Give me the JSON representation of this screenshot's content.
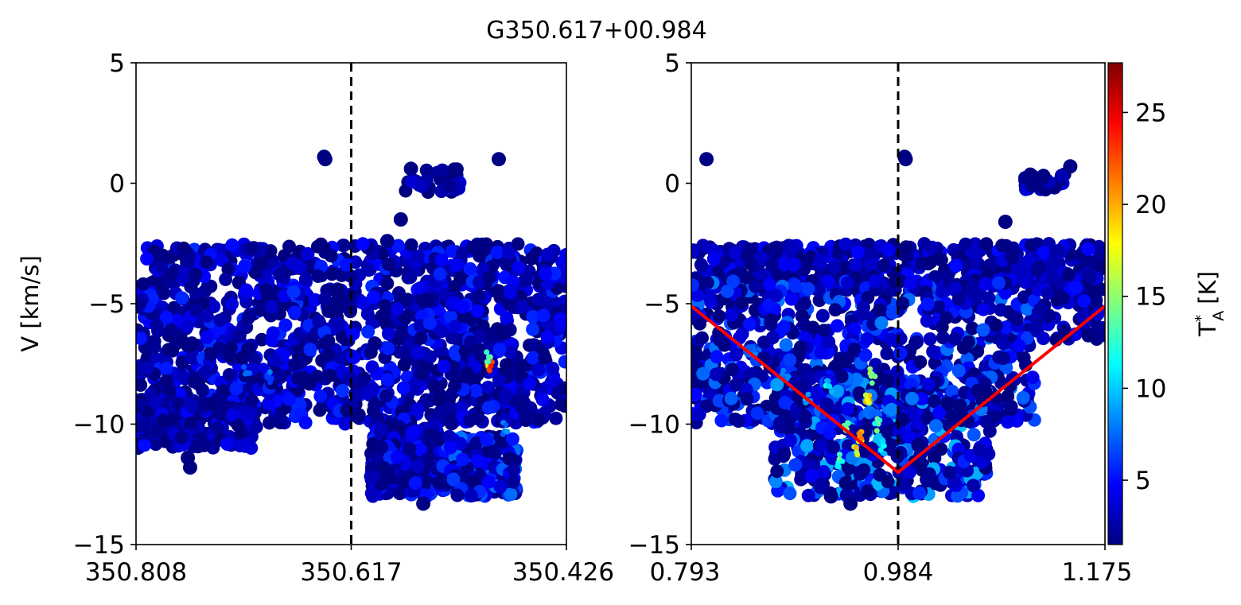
{
  "figure": {
    "title": "G350.617+00.984"
  },
  "colors": {
    "background": "#ffffff",
    "axes": "#000000",
    "dashed_line": "#000000",
    "fit_line": "#ff0000",
    "colormap": "jet",
    "colormap_stops": [
      "#00007f",
      "#0000ff",
      "#007fff",
      "#00ffff",
      "#7fff7f",
      "#ffff00",
      "#ff7f00",
      "#ff0000",
      "#7f0000"
    ]
  },
  "chart_data": [
    {
      "type": "scatter",
      "title": "",
      "xlabel": "",
      "ylabel": "V [km/s]",
      "xlim": [
        350.808,
        350.426
      ],
      "ylim": [
        -15,
        5
      ],
      "xticks": [
        "350.808",
        "350.617",
        "350.426"
      ],
      "xtick_values": [
        350.808,
        350.617,
        350.426
      ],
      "yticks": [
        "5",
        "0",
        "−5",
        "−10",
        "−15"
      ],
      "ytick_values": [
        5,
        0,
        -5,
        -10,
        -15
      ],
      "vline": 350.617,
      "outliers": [
        {
          "x": 350.641,
          "y": 1.1
        },
        {
          "x": 350.64,
          "y": 1.0
        },
        {
          "x": 350.76,
          "y": -11.8
        },
        {
          "x": 350.762,
          "y": -11.4
        },
        {
          "x": 350.573,
          "y": -1.5
        },
        {
          "x": 350.585,
          "y": -2.4
        },
        {
          "x": 350.486,
          "y": 1.0
        },
        {
          "x": 350.564,
          "y": 0.6
        },
        {
          "x": 350.553,
          "y": -13.3
        },
        {
          "x": 350.584,
          "y": -12.0
        }
      ],
      "blobs": [
        {
          "x": [
            350.808,
            350.426
          ],
          "y": [
            -10.0,
            -2.5
          ],
          "n": 1400,
          "tmax": 6
        },
        {
          "x": [
            350.81,
            350.7
          ],
          "y": [
            -11.0,
            -9.0
          ],
          "n": 160,
          "tmax": 5
        },
        {
          "x": [
            350.6,
            350.54
          ],
          "y": [
            -13.0,
            -10.0
          ],
          "n": 220,
          "tmax": 6
        },
        {
          "x": [
            350.54,
            350.47
          ],
          "y": [
            -13.0,
            -10.5
          ],
          "n": 240,
          "tmax": 8
        },
        {
          "x": [
            350.57,
            350.52
          ],
          "y": [
            0.6,
            -0.4
          ],
          "n": 40,
          "tmax": 4
        }
      ],
      "hotspots": [
        {
          "x": 350.494,
          "y": -7.5,
          "t": 24
        },
        {
          "x": 350.496,
          "y": -7.2,
          "t": 14
        },
        {
          "x": 350.71,
          "y": -7.9,
          "t": 9
        },
        {
          "x": 350.69,
          "y": -8.1,
          "t": 8
        },
        {
          "x": 350.48,
          "y": -10.2,
          "t": 9
        }
      ]
    },
    {
      "type": "scatter",
      "title": "",
      "xlabel": "",
      "ylabel": "",
      "xlim": [
        0.793,
        1.175
      ],
      "ylim": [
        -15,
        5
      ],
      "xticks": [
        "0.793",
        "0.984",
        "1.175"
      ],
      "xtick_values": [
        0.793,
        0.984,
        1.175
      ],
      "yticks": [
        "5",
        "0",
        "−5",
        "−10",
        "−15"
      ],
      "ytick_values": [
        5,
        0,
        -5,
        -10,
        -15
      ],
      "vline": 0.984,
      "fit_line": {
        "x": [
          0.793,
          0.984,
          1.175
        ],
        "y": [
          -5.1,
          -12.0,
          -5.1
        ]
      },
      "outliers": [
        {
          "x": 0.807,
          "y": 1.0
        },
        {
          "x": 0.99,
          "y": 1.1
        },
        {
          "x": 0.991,
          "y": 1.0
        },
        {
          "x": 1.143,
          "y": 0.7
        },
        {
          "x": 1.083,
          "y": -1.6
        },
        {
          "x": 1.117,
          "y": 0.2
        },
        {
          "x": 0.922,
          "y": -13.0
        },
        {
          "x": 0.94,
          "y": -13.3
        }
      ],
      "blobs": [
        {
          "x": [
            0.793,
            1.175
          ],
          "y": [
            -4.5,
            -2.5
          ],
          "n": 500,
          "tmax": 5
        },
        {
          "x": [
            0.793,
            1.11
          ],
          "y": [
            -10.0,
            -4.0
          ],
          "n": 700,
          "tmax": 8
        },
        {
          "x": [
            0.87,
            1.07
          ],
          "y": [
            -13.0,
            -8.0
          ],
          "n": 500,
          "tmax": 10
        },
        {
          "x": [
            1.11,
            1.175
          ],
          "y": [
            -6.5,
            -3.5
          ],
          "n": 80,
          "tmax": 5
        },
        {
          "x": [
            1.1,
            1.14
          ],
          "y": [
            0.4,
            -0.3
          ],
          "n": 40,
          "tmax": 4
        }
      ],
      "hotspots": [
        {
          "x": 0.95,
          "y": -10.5,
          "t": 22
        },
        {
          "x": 0.955,
          "y": -9.0,
          "t": 21
        },
        {
          "x": 0.945,
          "y": -11.0,
          "t": 20
        },
        {
          "x": 0.96,
          "y": -8.0,
          "t": 18
        },
        {
          "x": 0.935,
          "y": -10.2,
          "t": 16
        },
        {
          "x": 0.93,
          "y": -11.5,
          "t": 14
        },
        {
          "x": 0.965,
          "y": -10.0,
          "t": 15
        },
        {
          "x": 0.9,
          "y": -9.0,
          "t": 11
        },
        {
          "x": 0.88,
          "y": -8.0,
          "t": 10
        },
        {
          "x": 0.92,
          "y": -8.5,
          "t": 12
        },
        {
          "x": 0.97,
          "y": -11.0,
          "t": 12
        },
        {
          "x": 0.85,
          "y": -7.0,
          "t": 9
        }
      ]
    }
  ],
  "colorbar": {
    "label": "T*A [K]",
    "label_main": "T",
    "label_sup": "*",
    "label_sub": "A",
    "label_unit": "[K]",
    "range": [
      1.5,
      27.7
    ],
    "ticks": [
      "5",
      "10",
      "15",
      "20",
      "25"
    ],
    "tick_values": [
      5,
      10,
      15,
      20,
      25
    ]
  }
}
